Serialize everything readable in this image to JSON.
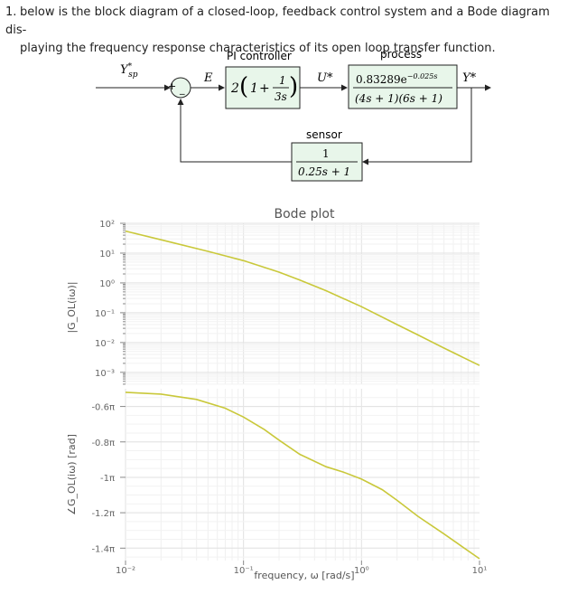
{
  "question": {
    "number": "1.",
    "line1": "below is the block diagram of a closed-loop, feedback control system and a Bode diagram dis-",
    "line2": "playing the frequency response characteristics of its open loop transfer function."
  },
  "diagram": {
    "setpoint_label": "Y*sp",
    "sum_plus": "+",
    "sum_minus": "_",
    "error_label": "E",
    "pi_label": "PI controller",
    "pi_gain": "2",
    "pi_one": "1",
    "pi_plus": "+",
    "pi_num": "1",
    "pi_den": "3s",
    "u_label": "U*",
    "process_label": "process",
    "process_num": "0.83289e",
    "process_exp": "−0.025s",
    "process_den": "(4s + 1)(6s + 1)",
    "output_label": "Y*",
    "sensor_label": "sensor",
    "sensor_num": "1",
    "sensor_den": "0.25s + 1"
  },
  "chart_data": {
    "type": "line",
    "title": "Bode plot",
    "xlabel": "frequency, ω [rad/s]",
    "xscale": "log",
    "xlim": [
      0.01,
      10
    ],
    "x_ticks": [
      "10⁻²",
      "10⁻¹",
      "10⁰",
      "10¹"
    ],
    "line_color": "#c9c83a",
    "magnitude": {
      "ylabel": "|G_OL(iω)|",
      "yscale": "log",
      "y_ticks": [
        "10²",
        "10¹",
        "10⁰",
        "10⁻¹",
        "10⁻²",
        "10⁻³"
      ],
      "ylim_exponents": [
        -3.4,
        2.0
      ],
      "x": [
        0.01,
        0.02,
        0.05,
        0.1,
        0.2,
        0.3,
        0.5,
        1,
        2,
        3,
        5,
        10
      ],
      "y": [
        55,
        28,
        11.5,
        5.6,
        2.3,
        1.25,
        0.55,
        0.16,
        0.04,
        0.018,
        0.0065,
        0.0017
      ]
    },
    "phase": {
      "ylabel": "∠G_OL(iω) [rad]",
      "y_ticks": [
        "-0.6π",
        "-0.8π",
        "-1π",
        "-1.2π",
        "-1.4π"
      ],
      "y_tick_values": [
        -0.6,
        -0.8,
        -1.0,
        -1.2,
        -1.4
      ],
      "ylim_pi": [
        -1.47,
        -0.5
      ],
      "x": [
        0.01,
        0.02,
        0.04,
        0.07,
        0.1,
        0.15,
        0.2,
        0.3,
        0.5,
        0.7,
        1,
        1.5,
        2,
        3,
        5,
        10
      ],
      "y_pi": [
        -0.52,
        -0.53,
        -0.56,
        -0.61,
        -0.66,
        -0.73,
        -0.79,
        -0.87,
        -0.94,
        -0.97,
        -1.01,
        -1.07,
        -1.13,
        -1.22,
        -1.32,
        -1.46
      ]
    }
  }
}
